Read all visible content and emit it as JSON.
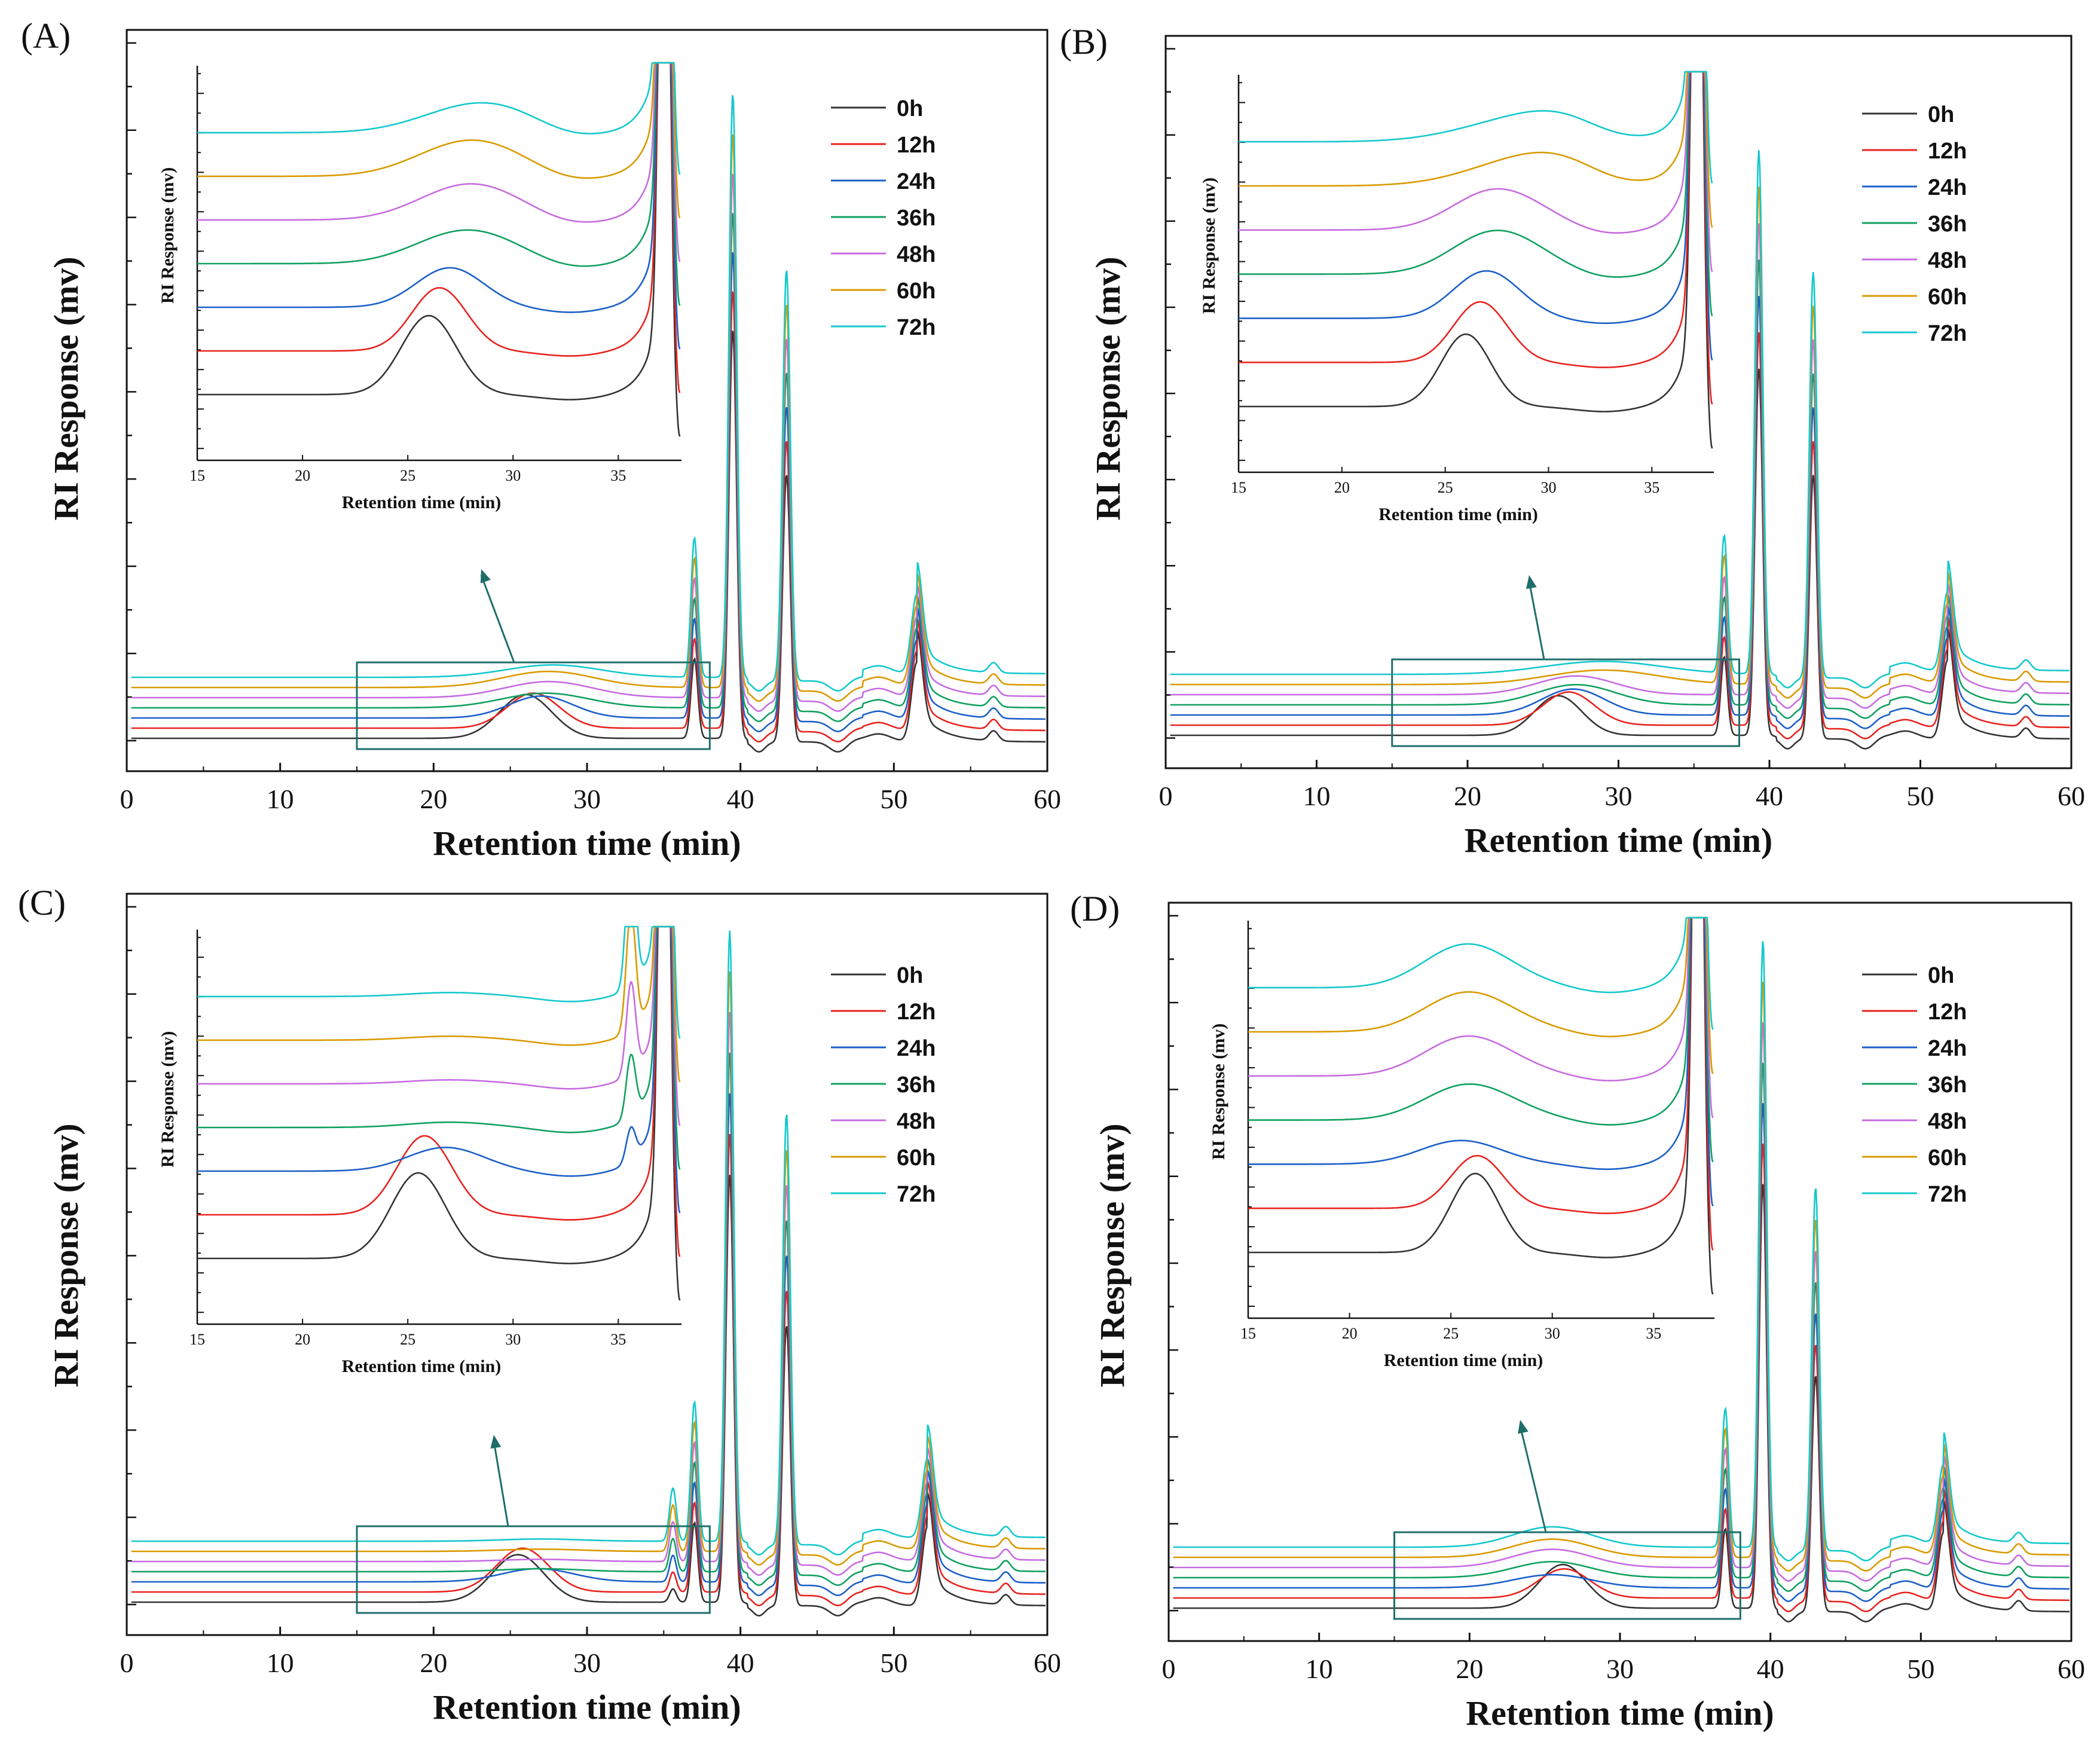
{
  "figure": {
    "x_axis_title": "Retention time (min)",
    "y_axis_title": "RI Response (mv)",
    "inset_x_axis_title": "Retention time (min)",
    "inset_y_axis_title": "RI Response (mv)"
  },
  "colors": {
    "0h": "#333333",
    "12h": "#e8231f",
    "24h": "#1b5fc8",
    "36h": "#10a060",
    "48h": "#c76be0",
    "60h": "#d99a00",
    "72h": "#14c8cc",
    "box": "#1e6e6a"
  },
  "chart_data": [
    {
      "panel": "(A)",
      "type": "line",
      "xlabel": "Retention time (min)",
      "ylabel": "RI Response (mv)",
      "xlim": [
        0,
        60
      ],
      "xticks": [
        0,
        10,
        20,
        30,
        40,
        50,
        60
      ],
      "series": [
        "0h",
        "12h",
        "24h",
        "36h",
        "48h",
        "60h",
        "72h"
      ],
      "main_peaks_min": [
        26.0,
        37.0,
        39.5,
        43.0,
        51.5,
        56.5
      ],
      "zoom_box_min": [
        15,
        38
      ],
      "inset": {
        "xlim": [
          15,
          38
        ],
        "xticks": [
          15,
          20,
          25,
          30,
          35
        ],
        "polysaccharide_peak_min": [
          26.0,
          26.5,
          27.0,
          27.3,
          27.5,
          27.5,
          27.8
        ],
        "polysaccharide_peak_height": [
          0.6,
          0.48,
          0.3,
          0.2,
          0.22,
          0.22,
          0.17
        ],
        "polysaccharide_peak_width": [
          1.3,
          1.3,
          1.6,
          2.2,
          2.2,
          2.3,
          2.4
        ]
      }
    },
    {
      "panel": "(B)",
      "type": "line",
      "xlabel": "Retention time (min)",
      "ylabel": "RI Response (mv)",
      "xlim": [
        0,
        60
      ],
      "xticks": [
        0,
        10,
        20,
        30,
        40,
        50,
        60
      ],
      "series": [
        "0h",
        "12h",
        "24h",
        "36h",
        "48h",
        "60h",
        "72h"
      ],
      "main_peaks_min": [
        26.0,
        37.0,
        39.3,
        42.9,
        51.8,
        57.0
      ],
      "zoom_box_min": [
        15,
        38
      ],
      "inset": {
        "xlim": [
          15,
          38
        ],
        "xticks": [
          15,
          20,
          25,
          30,
          35
        ],
        "polysaccharide_peak_min": [
          26.0,
          26.7,
          27.0,
          27.2,
          27.2,
          29.0,
          29.0
        ],
        "polysaccharide_peak_height": [
          0.55,
          0.46,
          0.36,
          0.28,
          0.26,
          0.2,
          0.18
        ],
        "polysaccharide_peak_width": [
          1.2,
          1.3,
          1.6,
          2.0,
          2.0,
          2.8,
          3.0
        ]
      }
    },
    {
      "panel": "(C)",
      "type": "line",
      "xlabel": "Retention time (min)",
      "ylabel": "RI Response (mv)",
      "xlim": [
        0,
        60
      ],
      "xticks": [
        0,
        10,
        20,
        30,
        40,
        50,
        60
      ],
      "series": [
        "0h",
        "12h",
        "24h",
        "36h",
        "48h",
        "60h",
        "72h"
      ],
      "main_peaks_min": [
        25.7,
        35.6,
        37.0,
        39.3,
        43.0,
        52.2,
        57.3
      ],
      "zoom_box_min": [
        15,
        38
      ],
      "inset": {
        "xlim": [
          15,
          38
        ],
        "xticks": [
          15,
          20,
          25,
          30,
          35
        ],
        "polysaccharide_peak_min": [
          25.5,
          25.8,
          26.8,
          27.0,
          27.0,
          27.0,
          27.0
        ],
        "polysaccharide_peak_height": [
          0.65,
          0.6,
          0.18,
          0.04,
          0.03,
          0.03,
          0.03
        ],
        "polysaccharide_peak_width": [
          1.3,
          1.3,
          1.8,
          2.0,
          2.0,
          2.0,
          2.0
        ]
      }
    },
    {
      "panel": "(D)",
      "type": "line",
      "xlabel": "Retention time (min)",
      "ylabel": "RI Response (mv)",
      "xlim": [
        0,
        60
      ],
      "xticks": [
        0,
        10,
        20,
        30,
        40,
        50,
        60
      ],
      "series": [
        "0h",
        "12h",
        "24h",
        "36h",
        "48h",
        "60h",
        "72h"
      ],
      "main_peaks_min": [
        26.3,
        37.0,
        39.5,
        43.0,
        51.5,
        56.5
      ],
      "zoom_box_min": [
        15,
        38
      ],
      "inset": {
        "xlim": [
          15,
          38
        ],
        "xticks": [
          15,
          20,
          25,
          30,
          35
        ],
        "polysaccharide_peak_min": [
          26.2,
          26.3,
          25.5,
          25.5,
          25.5,
          25.5,
          25.5
        ],
        "polysaccharide_peak_height": [
          0.6,
          0.4,
          0.18,
          0.22,
          0.25,
          0.25,
          0.28
        ],
        "polysaccharide_peak_width": [
          1.2,
          1.3,
          2.0,
          2.0,
          2.0,
          2.0,
          2.0
        ]
      }
    }
  ]
}
